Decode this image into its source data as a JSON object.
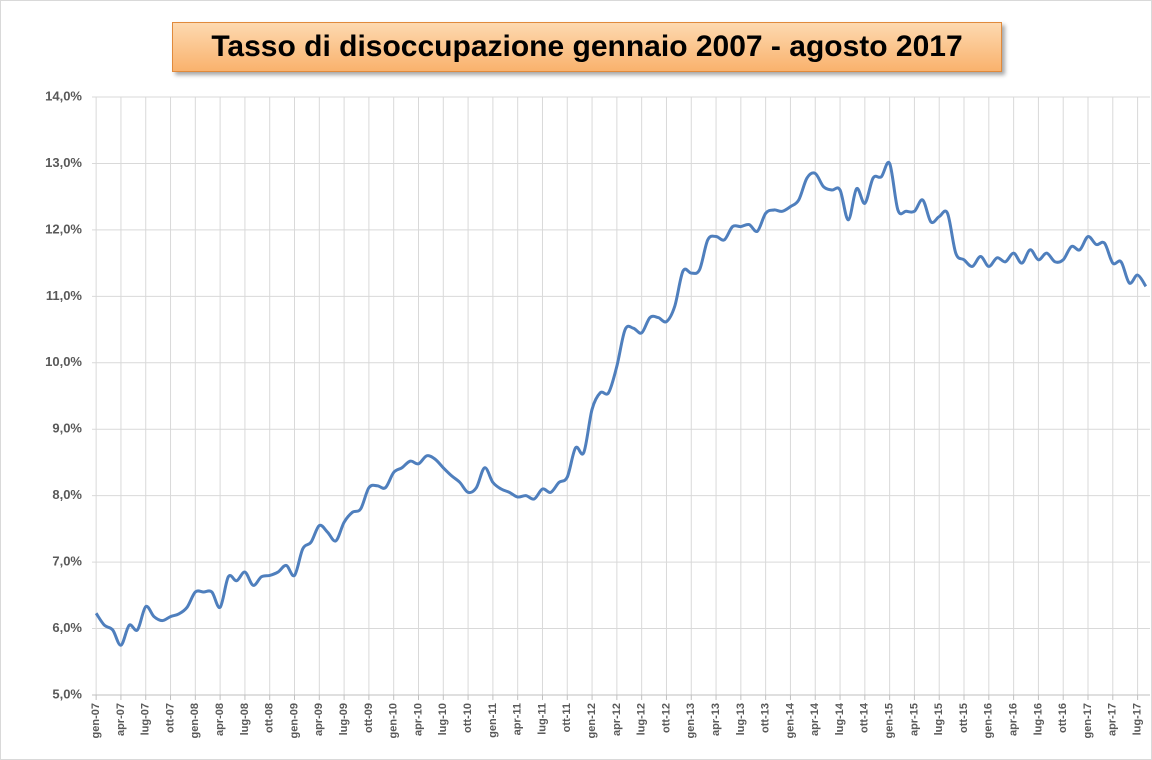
{
  "chart_data": {
    "type": "line",
    "title": "Tasso di disoccupazione gennaio 2007 - agosto 2017",
    "categories": [
      "gen-07",
      null,
      null,
      "apr-07",
      null,
      null,
      "lug-07",
      null,
      null,
      "ott-07",
      null,
      null,
      "gen-08",
      null,
      null,
      "apr-08",
      null,
      null,
      "lug-08",
      null,
      null,
      "ott-08",
      null,
      null,
      "gen-09",
      null,
      null,
      "apr-09",
      null,
      null,
      "lug-09",
      null,
      null,
      "ott-09",
      null,
      null,
      "gen-10",
      null,
      null,
      "apr-10",
      null,
      null,
      "lug-10",
      null,
      null,
      "ott-10",
      null,
      null,
      "gen-11",
      null,
      null,
      "apr-11",
      null,
      null,
      "lug-11",
      null,
      null,
      "ott-11",
      null,
      null,
      "gen-12",
      null,
      null,
      "apr-12",
      null,
      null,
      "lug-12",
      null,
      null,
      "ott-12",
      null,
      null,
      "gen-13",
      null,
      null,
      "apr-13",
      null,
      null,
      "lug-13",
      null,
      null,
      "ott-13",
      null,
      null,
      "gen-14",
      null,
      null,
      "apr-14",
      null,
      null,
      "lug-14",
      null,
      null,
      "ott-14",
      null,
      null,
      "gen-15",
      null,
      null,
      "apr-15",
      null,
      null,
      "lug-15",
      null,
      null,
      "ott-15",
      null,
      null,
      "gen-16",
      null,
      null,
      "apr-16",
      null,
      null,
      "lug-16",
      null,
      null,
      "ott-16",
      null,
      null,
      "gen-17",
      null,
      null,
      "apr-17",
      null,
      null,
      "lug-17",
      null
    ],
    "series": [
      {
        "color": "#4f7fbd",
        "values": [
          6.23,
          6.05,
          5.98,
          5.75,
          6.05,
          5.98,
          6.33,
          6.18,
          6.12,
          6.18,
          6.22,
          6.32,
          6.55,
          6.55,
          6.55,
          6.32,
          6.78,
          6.72,
          6.85,
          6.65,
          6.78,
          6.8,
          6.85,
          6.95,
          6.8,
          7.2,
          7.3,
          7.55,
          7.45,
          7.32,
          7.6,
          7.75,
          7.8,
          8.12,
          8.15,
          8.12,
          8.35,
          8.42,
          8.52,
          8.48,
          8.6,
          8.55,
          8.42,
          8.3,
          8.2,
          8.05,
          8.12,
          8.42,
          8.2,
          8.1,
          8.05,
          7.98,
          8.0,
          7.95,
          8.1,
          8.05,
          8.2,
          8.28,
          8.72,
          8.65,
          9.3,
          9.55,
          9.55,
          9.95,
          10.5,
          10.52,
          10.45,
          10.68,
          10.68,
          10.62,
          10.85,
          11.38,
          11.35,
          11.4,
          11.85,
          11.9,
          11.85,
          12.05,
          12.05,
          12.08,
          11.98,
          12.25,
          12.3,
          12.28,
          12.35,
          12.45,
          12.78,
          12.85,
          12.65,
          12.6,
          12.6,
          12.15,
          12.62,
          12.4,
          12.78,
          12.8,
          13.0,
          12.3,
          12.28,
          12.28,
          12.45,
          12.12,
          12.2,
          12.25,
          11.65,
          11.55,
          11.45,
          11.6,
          11.45,
          11.58,
          11.52,
          11.65,
          11.5,
          11.7,
          11.55,
          11.65,
          11.52,
          11.55,
          11.75,
          11.7,
          11.9,
          11.78,
          11.8,
          11.5,
          11.52,
          11.2,
          11.32,
          11.15
        ]
      }
    ],
    "ylim": [
      5,
      14
    ],
    "yticks": [
      {
        "value": 5,
        "label": "5,0%"
      },
      {
        "value": 6,
        "label": "6,0%"
      },
      {
        "value": 7,
        "label": "7,0%"
      },
      {
        "value": 8,
        "label": "8,0%"
      },
      {
        "value": 9,
        "label": "9,0%"
      },
      {
        "value": 10,
        "label": "10,0%"
      },
      {
        "value": 11,
        "label": "11,0%"
      },
      {
        "value": 12,
        "label": "12,0%"
      },
      {
        "value": 13,
        "label": "13,0%"
      },
      {
        "value": 14,
        "label": "14,0%"
      }
    ],
    "grid": true
  }
}
